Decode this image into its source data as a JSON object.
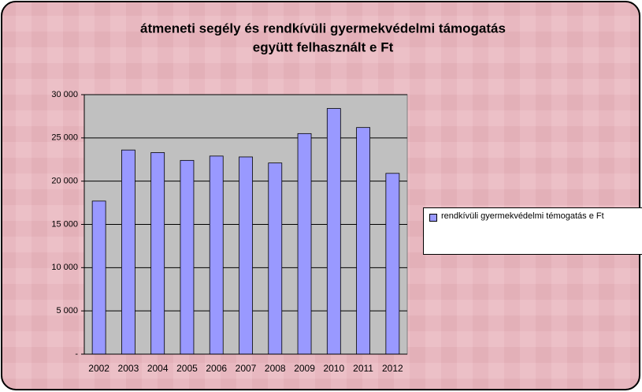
{
  "chart_data": {
    "type": "bar",
    "title": [
      "átmeneti segély és rendkívüli gyermekvédelmi támogatás",
      "együtt felhasznált e Ft"
    ],
    "categories": [
      "2002",
      "2003",
      "2004",
      "2005",
      "2006",
      "2007",
      "2008",
      "2009",
      "2010",
      "2011",
      "2012"
    ],
    "series": [
      {
        "name": "rendkívüli gyermekvédelmi témogatás e Ft",
        "color": "#9999ff",
        "values": [
          17700,
          23600,
          23300,
          22400,
          22900,
          22800,
          22100,
          25500,
          28400,
          26200,
          20900
        ]
      }
    ],
    "ylim": [
      0,
      30000
    ],
    "yticks": [
      {
        "value": 0,
        "label": "-"
      },
      {
        "value": 5000,
        "label": "5 000"
      },
      {
        "value": 10000,
        "label": "10 000"
      },
      {
        "value": 15000,
        "label": "15 000"
      },
      {
        "value": 20000,
        "label": "20 000"
      },
      {
        "value": 25000,
        "label": "25 000"
      },
      {
        "value": 30000,
        "label": "30 000"
      }
    ],
    "grid": true,
    "legend": "right"
  }
}
